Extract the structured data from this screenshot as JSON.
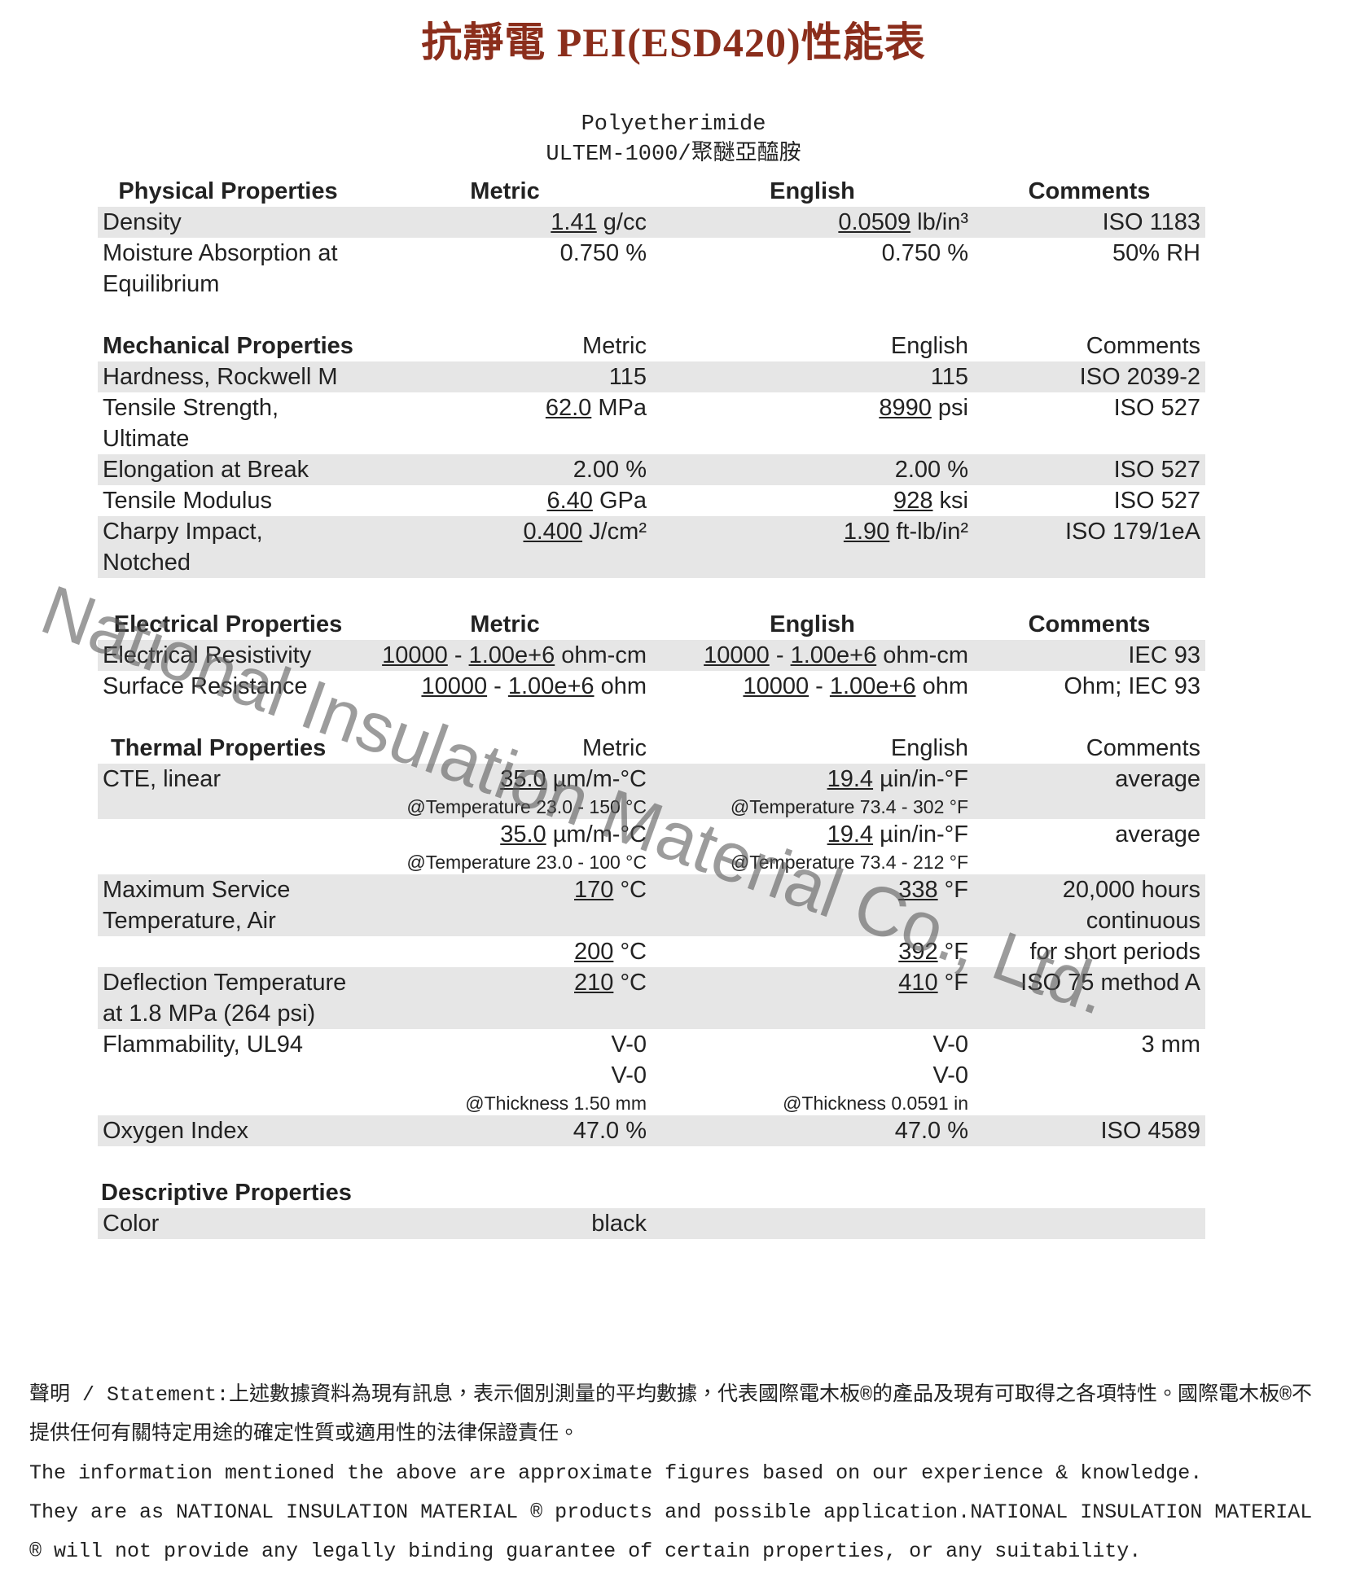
{
  "title": "抗靜電 PEI(ESD420)性能表",
  "subtitle": [
    "Polyetherimide",
    "ULTEM-1000/聚醚亞醯胺"
  ],
  "watermark": "National Insulation Material Co., Ltd.",
  "sections": [
    {
      "header": [
        "Physical Properties",
        "Metric",
        "English",
        "Comments"
      ],
      "rows": [
        {
          "property": "Density",
          "metric": [
            [
              {
                "link": "1.41"
              },
              " g/cc"
            ]
          ],
          "english": [
            [
              {
                "link": "0.0509"
              },
              " lb/in³"
            ]
          ],
          "comments": "ISO 1183"
        },
        {
          "property": "Moisture Absorption at Equilibrium",
          "metric": [
            [
              "0.750 %"
            ]
          ],
          "english": [
            [
              "0.750 %"
            ]
          ],
          "comments": "50% RH"
        }
      ]
    },
    {
      "header": [
        "Mechanical Properties",
        "Metric",
        "English",
        "Comments"
      ],
      "rows": [
        {
          "property": "Hardness, Rockwell M",
          "metric": [
            [
              "115"
            ]
          ],
          "english": [
            [
              "115"
            ]
          ],
          "comments": "ISO 2039-2"
        },
        {
          "property": "Tensile Strength, Ultimate",
          "metric": [
            [
              {
                "link": "62.0"
              },
              " MPa"
            ]
          ],
          "english": [
            [
              {
                "link": "8990"
              },
              " psi"
            ]
          ],
          "comments": "ISO 527"
        },
        {
          "property": "Elongation at Break",
          "metric": [
            [
              "2.00 %"
            ]
          ],
          "english": [
            [
              "2.00 %"
            ]
          ],
          "comments": "ISO 527"
        },
        {
          "property": "Tensile Modulus",
          "metric": [
            [
              {
                "link": "6.40"
              },
              " GPa"
            ]
          ],
          "english": [
            [
              {
                "link": "928"
              },
              " ksi"
            ]
          ],
          "comments": "ISO 527"
        },
        {
          "property": "Charpy Impact, Notched",
          "metric": [
            [
              {
                "link": "0.400"
              },
              " J/cm²"
            ]
          ],
          "english": [
            [
              {
                "link": "1.90"
              },
              " ft-lb/in²"
            ]
          ],
          "comments": "ISO 179/1eA"
        }
      ]
    },
    {
      "header": [
        "Electrical Properties",
        "Metric",
        "English",
        "Comments"
      ],
      "rows": [
        {
          "property": "Electrical Resistivity",
          "metric": [
            [
              {
                "link": "10000"
              },
              " - ",
              {
                "link": "1.00e+6"
              },
              " ohm-cm"
            ]
          ],
          "english": [
            [
              {
                "link": "10000"
              },
              " - ",
              {
                "link": "1.00e+6"
              },
              " ohm-cm"
            ]
          ],
          "comments": "IEC 93"
        },
        {
          "property": "Surface Resistance",
          "metric": [
            [
              {
                "link": "10000"
              },
              " - ",
              {
                "link": "1.00e+6"
              },
              " ohm"
            ]
          ],
          "english": [
            [
              {
                "link": "10000"
              },
              " - ",
              {
                "link": "1.00e+6"
              },
              " ohm"
            ]
          ],
          "comments": "Ohm; IEC 93"
        }
      ]
    },
    {
      "header": [
        "Thermal Properties",
        "Metric",
        "English",
        "Comments"
      ],
      "rows": [
        {
          "property": "CTE, linear",
          "metric": [
            [
              {
                "link": "35.0"
              },
              " µm/m-°C"
            ],
            [
              {
                "note": "@Temperature 23.0 - 150 °C"
              }
            ]
          ],
          "english": [
            [
              {
                "link": "19.4"
              },
              " µin/in-°F"
            ],
            [
              {
                "note": "@Temperature 73.4 - 302 °F"
              }
            ]
          ],
          "comments": "average"
        },
        {
          "metric": [
            [
              {
                "link": "35.0"
              },
              " µm/m-°C"
            ],
            [
              {
                "note": "@Temperature 23.0 - 100 °C"
              }
            ]
          ],
          "english": [
            [
              {
                "link": "19.4"
              },
              " µin/in-°F"
            ],
            [
              {
                "note": "@Temperature 73.4 - 212 °F"
              }
            ]
          ],
          "comments": "average"
        },
        {
          "property": "Maximum Service Temperature, Air",
          "metric": [
            [
              {
                "link": "170"
              },
              " °C"
            ]
          ],
          "english": [
            [
              {
                "link": "338"
              },
              " °F"
            ]
          ],
          "comments": "20,000 hours continuous"
        },
        {
          "metric": [
            [
              {
                "link": "200"
              },
              " °C"
            ]
          ],
          "english": [
            [
              {
                "link": "392"
              },
              " °F"
            ]
          ],
          "comments": "for short periods"
        },
        {
          "property": "Deflection Temperature at 1.8 MPa (264 psi)",
          "metric": [
            [
              {
                "link": "210"
              },
              " °C"
            ]
          ],
          "english": [
            [
              {
                "link": "410"
              },
              " °F"
            ]
          ],
          "comments": "ISO 75 method A"
        },
        {
          "property": "Flammability, UL94",
          "metric": [
            [
              "V-0"
            ],
            [
              "V-0"
            ],
            [
              {
                "note": "@Thickness 1.50 mm"
              }
            ]
          ],
          "english": [
            [
              "V-0"
            ],
            [
              "V-0"
            ],
            [
              {
                "note": "@Thickness 0.0591 in"
              }
            ]
          ],
          "comments": "3 mm"
        },
        {
          "property": "Oxygen Index",
          "metric": [
            [
              "47.0 %"
            ]
          ],
          "english": [
            [
              "47.0 %"
            ]
          ],
          "comments": "ISO 4589"
        }
      ]
    },
    {
      "header": [
        "Descriptive Properties"
      ],
      "rows": [
        {
          "property": "Color",
          "metric": [
            [
              "black"
            ]
          ]
        }
      ]
    }
  ],
  "statement": [
    "聲明 / Statement:上述數據資料為現有訊息，表示個別測量的平均數據，代表國際電木板®的產品及現有可取得之各項特性。國際電木板®不提供任何有關特定用途的確定性質或適用性的法律保證責任。",
    "The information mentioned the above are approximate figures based on our experience & knowledge.",
    "They are as NATIONAL INSULATION MATERIAL ® products and possible application.NATIONAL INSULATION MATERIAL ® will not provide any legally binding guarantee of certain properties, or any suitability."
  ]
}
